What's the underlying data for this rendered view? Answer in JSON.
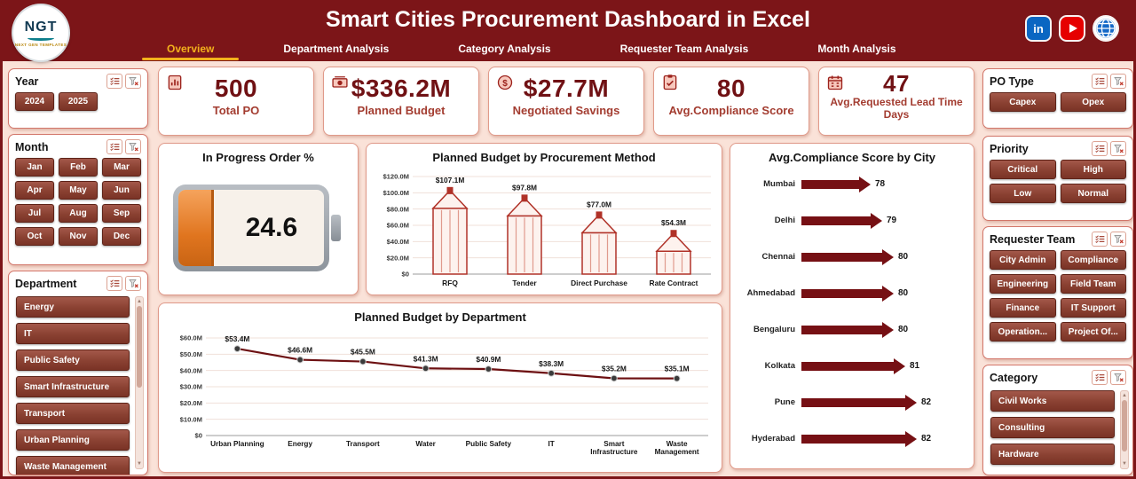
{
  "header": {
    "logo_text": "NGT",
    "logo_subtext": "NEXT GEN TEMPLATES",
    "title": "Smart Cities Procurement Dashboard in Excel",
    "tabs": [
      {
        "label": "Overview",
        "active": true
      },
      {
        "label": "Department Analysis",
        "active": false
      },
      {
        "label": "Category Analysis",
        "active": false
      },
      {
        "label": "Requester Team Analysis",
        "active": false
      },
      {
        "label": "Month Analysis",
        "active": false
      }
    ],
    "social_icons": [
      "linkedin",
      "youtube",
      "globe"
    ],
    "header_bg": "#7c1518",
    "accent_gold": "#f3b11c"
  },
  "kpis": [
    {
      "icon": "report-icon",
      "value": "500",
      "label": "Total PO"
    },
    {
      "icon": "money-icon",
      "value": "$336.2M",
      "label": "Planned Budget"
    },
    {
      "icon": "savings-icon",
      "value": "$27.7M",
      "label": "Negotiated Savings"
    },
    {
      "icon": "score-icon",
      "value": "80",
      "label": "Avg.Compliance Score"
    },
    {
      "icon": "calendar-icon",
      "value": "47",
      "label": "Avg.Requested Lead Time Days"
    }
  ],
  "slicers": {
    "year": {
      "title": "Year",
      "items": [
        "2024",
        "2025"
      ]
    },
    "month": {
      "title": "Month",
      "items": [
        "Jan",
        "Feb",
        "Mar",
        "Apr",
        "May",
        "Jun",
        "Jul",
        "Aug",
        "Sep",
        "Oct",
        "Nov",
        "Dec"
      ]
    },
    "department": {
      "title": "Department",
      "items": [
        "Energy",
        "IT",
        "Public Safety",
        "Smart Infrastructure",
        "Transport",
        "Urban Planning",
        "Waste Management"
      ]
    },
    "po_type": {
      "title": "PO Type",
      "items": [
        "Capex",
        "Opex"
      ]
    },
    "priority": {
      "title": "Priority",
      "items": [
        "Critical",
        "High",
        "Low",
        "Normal"
      ]
    },
    "requester_team": {
      "title": "Requester Team",
      "items": [
        "City Admin",
        "Compliance",
        "Engineering",
        "Field Team",
        "Finance",
        "IT Support",
        "Operation...",
        "Project Of..."
      ]
    },
    "category": {
      "title": "Category",
      "items": [
        "Civil Works",
        "Consulting",
        "Hardware"
      ]
    }
  },
  "chart_data": [
    {
      "type": "gauge",
      "title": "In Progress Order %",
      "value": 24.6,
      "max": 100,
      "fill_color": "#e0751f"
    },
    {
      "type": "bar",
      "title": "Planned Budget by Procurement Method",
      "categories": [
        "RFQ",
        "Tender",
        "Direct Purchase",
        "Rate Contract"
      ],
      "values": [
        107.1,
        97.8,
        77.0,
        54.3
      ],
      "labels": [
        "$107.1M",
        "$97.8M",
        "$77.0M",
        "$54.3M"
      ],
      "yticks": [
        "$120.0M",
        "$100.0M",
        "$80.0M",
        "$60.0M",
        "$40.0M",
        "$20.0M",
        "$0"
      ],
      "ylim": [
        0,
        120
      ],
      "bar_style": "pencil",
      "outline_color": "#b03228"
    },
    {
      "type": "line",
      "title": "Planned Budget by Department",
      "categories": [
        "Urban Planning",
        "Energy",
        "Transport",
        "Water",
        "Public Safety",
        "IT",
        "Smart Infrastructure",
        "Waste Management"
      ],
      "values": [
        53.4,
        46.6,
        45.5,
        41.3,
        40.9,
        38.3,
        35.2,
        35.1
      ],
      "labels": [
        "$53.4M",
        "$46.6M",
        "$45.5M",
        "$41.3M",
        "$40.9M",
        "$38.3M",
        "$35.2M",
        "$35.1M"
      ],
      "yticks": [
        "$60.0M",
        "$50.0M",
        "$40.0M",
        "$30.0M",
        "$20.0M",
        "$10.0M",
        "$0"
      ],
      "ylim": [
        0,
        60
      ],
      "line_color": "#6d1012"
    },
    {
      "type": "bar-horizontal",
      "title": "Avg.Compliance Score by City",
      "categories": [
        "Mumbai",
        "Delhi",
        "Chennai",
        "Ahmedabad",
        "Bengaluru",
        "Kolkata",
        "Pune",
        "Hyderabad"
      ],
      "values": [
        78,
        79,
        80,
        80,
        80,
        81,
        82,
        82
      ],
      "bar_color": "#761014"
    }
  ]
}
